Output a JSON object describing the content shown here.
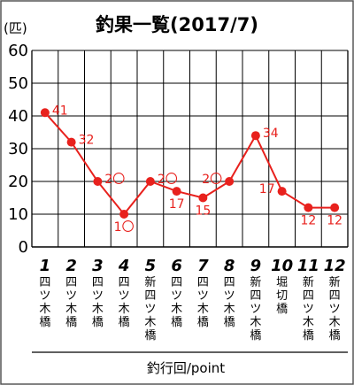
{
  "chart_data": {
    "type": "line",
    "title": "釣果一覧(2017/7)",
    "ylabel": "(匹)",
    "xlabel": "釣行回/point",
    "ylim": [
      0,
      60
    ],
    "yticks": [
      0,
      10,
      20,
      30,
      40,
      50,
      60
    ],
    "grid": true,
    "categories": [
      "1",
      "2",
      "3",
      "4",
      "5",
      "6",
      "7",
      "8",
      "9",
      "10",
      "11",
      "12"
    ],
    "locations": [
      "四ツ木橋",
      "四ツ木橋",
      "四ツ木橋",
      "四ツ木橋",
      "新四ツ木橋",
      "四ツ木橋",
      "四ツ木橋",
      "四ツ木橋",
      "新四ツ木橋",
      "堀切橋",
      "新四ツ木橋",
      "新四ツ木橋"
    ],
    "series": [
      {
        "values": [
          41,
          32,
          20,
          10,
          20,
          17,
          15,
          20,
          34,
          17,
          12,
          12
        ],
        "color": "#e8211d"
      }
    ],
    "data_labels": [
      "41",
      "32",
      "2〇",
      "1〇",
      "2〇",
      "17",
      "15",
      "2〇",
      "34",
      "17",
      "12",
      "12"
    ],
    "label_positions": [
      "right",
      "right",
      "right",
      "below",
      "right",
      "below",
      "below",
      "left",
      "right",
      "left",
      "below",
      "below"
    ],
    "frame_color": "#555555",
    "grid_color": "#000000"
  }
}
